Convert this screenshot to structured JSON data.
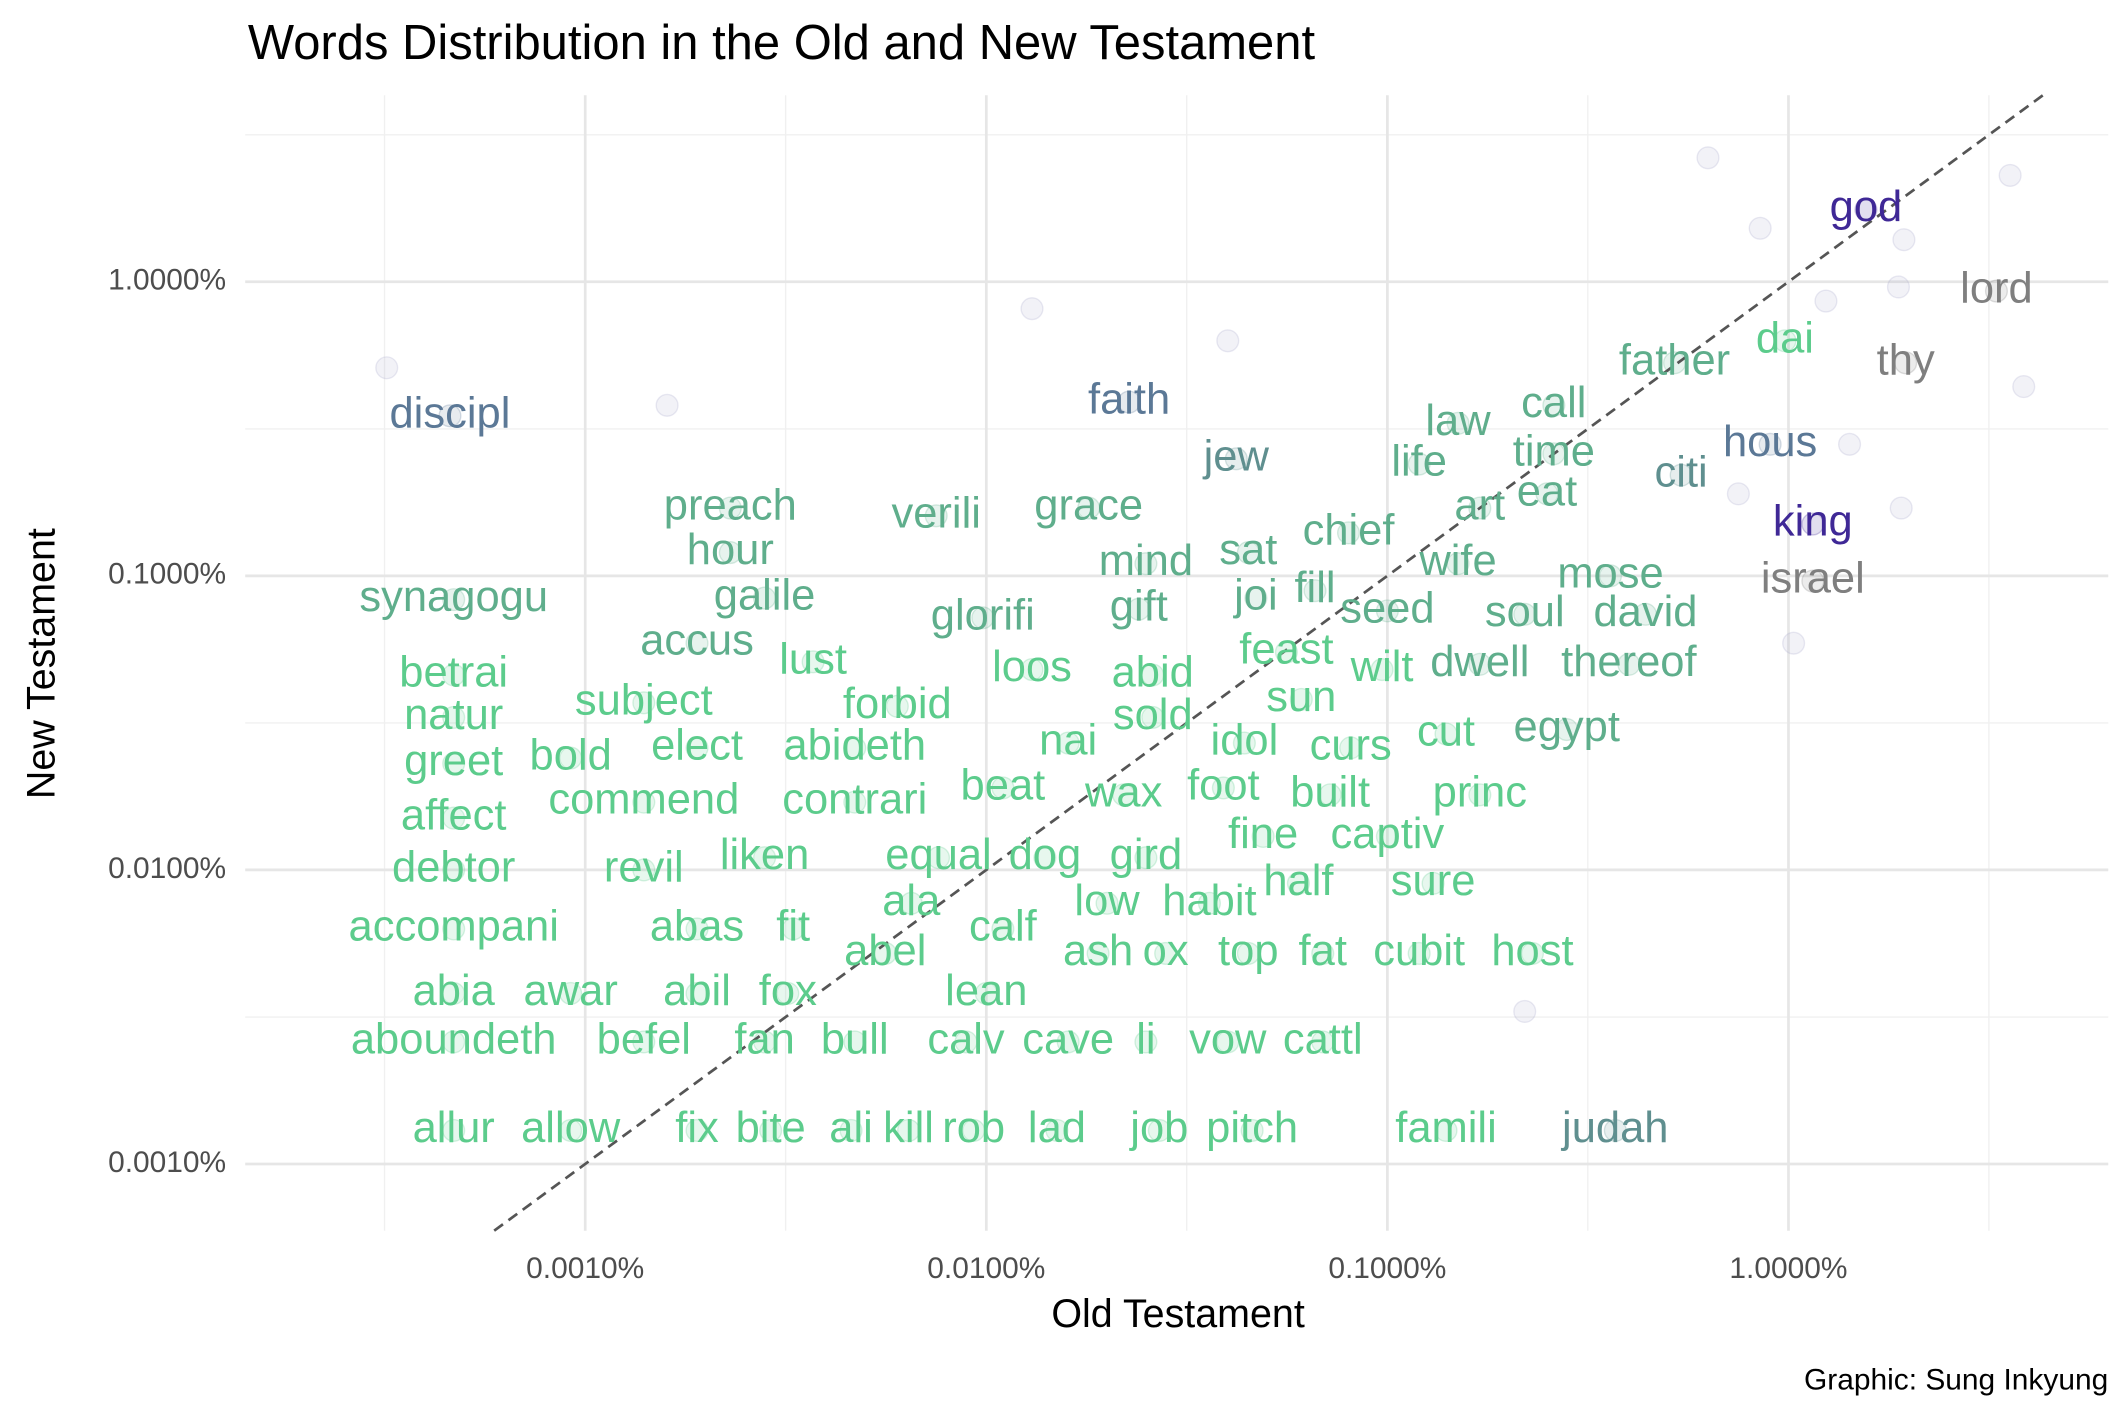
{
  "chart_data": {
    "type": "scatter",
    "title": "Words Distribution in the Old and New Testament",
    "x_label": "Old Testament",
    "y_label": "New Testament",
    "caption": "Graphic: Sung Inkyung",
    "log_x": true,
    "log_y": true,
    "grid": true,
    "xlim": [
      0.000142,
      6.27
    ],
    "ylim": [
      0.000593,
      4.31
    ],
    "xticks": [
      {
        "value": 0.001,
        "label": "0.0010%"
      },
      {
        "value": 0.01,
        "label": "0.0100%"
      },
      {
        "value": 0.1,
        "label": "0.1000%"
      },
      {
        "value": 1,
        "label": "1.0000%"
      }
    ],
    "yticks": [
      {
        "value": 0.001,
        "label": "0.0010%"
      },
      {
        "value": 0.01,
        "label": "0.0100%"
      },
      {
        "value": 0.1,
        "label": "0.1000%"
      },
      {
        "value": 1,
        "label": "1.0000%"
      }
    ],
    "minor_xticks": [
      0.000316,
      0.00316,
      0.0316,
      0.316,
      3.16
    ],
    "minor_yticks": [
      0.00316,
      0.0316,
      0.316,
      3.16
    ],
    "series": [
      {
        "color": "#5fae8c",
        "labels": [
          "father",
          "call",
          "law",
          "life",
          "time",
          "art",
          "eat",
          "preach",
          "verili",
          "grace",
          "hour",
          "chief",
          "sat",
          "mind",
          "wife",
          "mose",
          "synagogu",
          "galile",
          "glorifi",
          "gift",
          "joi",
          "fill",
          "seed",
          "soul",
          "david",
          "dwell",
          "thereof",
          "egypt",
          "accus"
        ],
        "x": [
          0.52,
          0.26,
          0.15,
          0.12,
          0.26,
          0.17,
          0.25,
          0.0023,
          0.0075,
          0.018,
          0.0023,
          0.08,
          0.045,
          0.025,
          0.15,
          0.36,
          0.00047,
          0.0028,
          0.0098,
          0.024,
          0.047,
          0.066,
          0.1,
          0.22,
          0.44,
          0.17,
          0.4,
          0.28,
          0.0019
        ],
        "values": [
          0.53,
          0.38,
          0.33,
          0.24,
          0.26,
          0.17,
          0.19,
          0.17,
          0.16,
          0.17,
          0.12,
          0.14,
          0.12,
          0.11,
          0.11,
          0.1,
          0.083,
          0.084,
          0.072,
          0.077,
          0.084,
          0.089,
          0.076,
          0.074,
          0.074,
          0.05,
          0.05,
          0.03,
          0.059
        ]
      },
      {
        "color": "#5ccc8c",
        "labels": [
          "dai",
          "lust",
          "feast",
          "betrai",
          "loos",
          "abid",
          "wilt",
          "natur",
          "subject",
          "forbid",
          "sun",
          "sold",
          "greet",
          "bold",
          "elect",
          "abideth",
          "nai",
          "idol",
          "curs",
          "cut",
          "affect",
          "commend",
          "contrari",
          "beat",
          "wax",
          "foot",
          "built",
          "princ",
          "debtor",
          "revil",
          "liken",
          "equal",
          "dog",
          "gird",
          "fine",
          "captiv",
          "half",
          "sure",
          "ala",
          "low",
          "habit",
          "accompani",
          "abas",
          "fit",
          "calf",
          "abel",
          "ash",
          "ox",
          "top",
          "fat",
          "cubit",
          "host",
          "abia",
          "awar",
          "abil",
          "fox",
          "lean",
          "aboundeth",
          "befel",
          "fan",
          "bull",
          "calv",
          "cave",
          "li",
          "vow",
          "cattl",
          "allur",
          "allow",
          "fix",
          "bite",
          "ali",
          "kill",
          "rob",
          "lad",
          "job",
          "pitch",
          "famili"
        ],
        "x": [
          0.98,
          0.0037,
          0.056,
          0.00047,
          0.013,
          0.026,
          0.097,
          0.00047,
          0.0014,
          0.006,
          0.061,
          0.026,
          0.00047,
          0.00092,
          0.0019,
          0.0047,
          0.016,
          0.044,
          0.081,
          0.14,
          0.00047,
          0.0014,
          0.0047,
          0.011,
          0.022,
          0.039,
          0.072,
          0.17,
          0.00047,
          0.0014,
          0.0028,
          0.0076,
          0.014,
          0.025,
          0.049,
          0.1,
          0.06,
          0.13,
          0.0065,
          0.02,
          0.036,
          0.00047,
          0.0019,
          0.0033,
          0.011,
          0.0056,
          0.019,
          0.028,
          0.045,
          0.069,
          0.12,
          0.23,
          0.00047,
          0.00092,
          0.0019,
          0.0032,
          0.01,
          0.00047,
          0.0014,
          0.0028,
          0.0047,
          0.0089,
          0.016,
          0.025,
          0.04,
          0.069,
          0.00047,
          0.00092,
          0.0019,
          0.0029,
          0.0046,
          0.0064,
          0.0093,
          0.015,
          0.027,
          0.046,
          0.14
        ],
        "values": [
          0.63,
          0.051,
          0.055,
          0.046,
          0.048,
          0.046,
          0.048,
          0.033,
          0.037,
          0.036,
          0.038,
          0.033,
          0.023,
          0.024,
          0.026,
          0.026,
          0.027,
          0.027,
          0.026,
          0.029,
          0.015,
          0.017,
          0.017,
          0.019,
          0.018,
          0.019,
          0.018,
          0.018,
          0.01,
          0.01,
          0.011,
          0.011,
          0.011,
          0.011,
          0.013,
          0.013,
          0.009,
          0.009,
          0.0077,
          0.0077,
          0.0077,
          0.0063,
          0.0063,
          0.0063,
          0.0063,
          0.0052,
          0.0052,
          0.0052,
          0.0052,
          0.0052,
          0.0052,
          0.0052,
          0.0038,
          0.0038,
          0.0038,
          0.0038,
          0.0038,
          0.0026,
          0.0026,
          0.0026,
          0.0026,
          0.0026,
          0.0026,
          0.0026,
          0.0026,
          0.0026,
          0.0013,
          0.0013,
          0.0013,
          0.0013,
          0.0013,
          0.0013,
          0.0013,
          0.0013,
          0.0013,
          0.0013,
          0.0013
        ]
      },
      {
        "color": "#5b7896",
        "labels": [
          "discipl",
          "faith",
          "hous"
        ],
        "x": [
          0.00046,
          0.0227,
          0.9
        ],
        "values": [
          0.35,
          0.39,
          0.28
        ]
      },
      {
        "color": "#5f8f8f",
        "labels": [
          "jew",
          "citi",
          "judah"
        ],
        "x": [
          0.042,
          0.54,
          0.37
        ],
        "values": [
          0.25,
          0.22,
          0.0013
        ]
      },
      {
        "color": "#3f2896",
        "labels": [
          "god",
          "king"
        ],
        "x": [
          1.56,
          1.15
        ],
        "values": [
          1.76,
          0.15
        ]
      },
      {
        "color": "#7f7f7f",
        "labels": [
          "lord",
          "thy",
          "israel"
        ],
        "x": [
          3.3,
          1.96,
          1.15
        ],
        "values": [
          0.93,
          0.53,
          0.096
        ]
      },
      {
        "color": "#a8a8cc",
        "x": [
          0.63,
          3.57,
          1.94,
          1.88,
          3.86,
          0.75,
          1.03,
          1.42,
          1.91,
          0.013,
          0.00032,
          0.04,
          0.85,
          1.24,
          0.0016,
          0.22
        ],
        "values": [
          2.64,
          2.3,
          1.39,
          0.96,
          0.44,
          0.19,
          0.059,
          0.28,
          0.17,
          0.81,
          0.51,
          0.63,
          1.52,
          0.86,
          0.38,
          0.0033
        ]
      }
    ]
  }
}
